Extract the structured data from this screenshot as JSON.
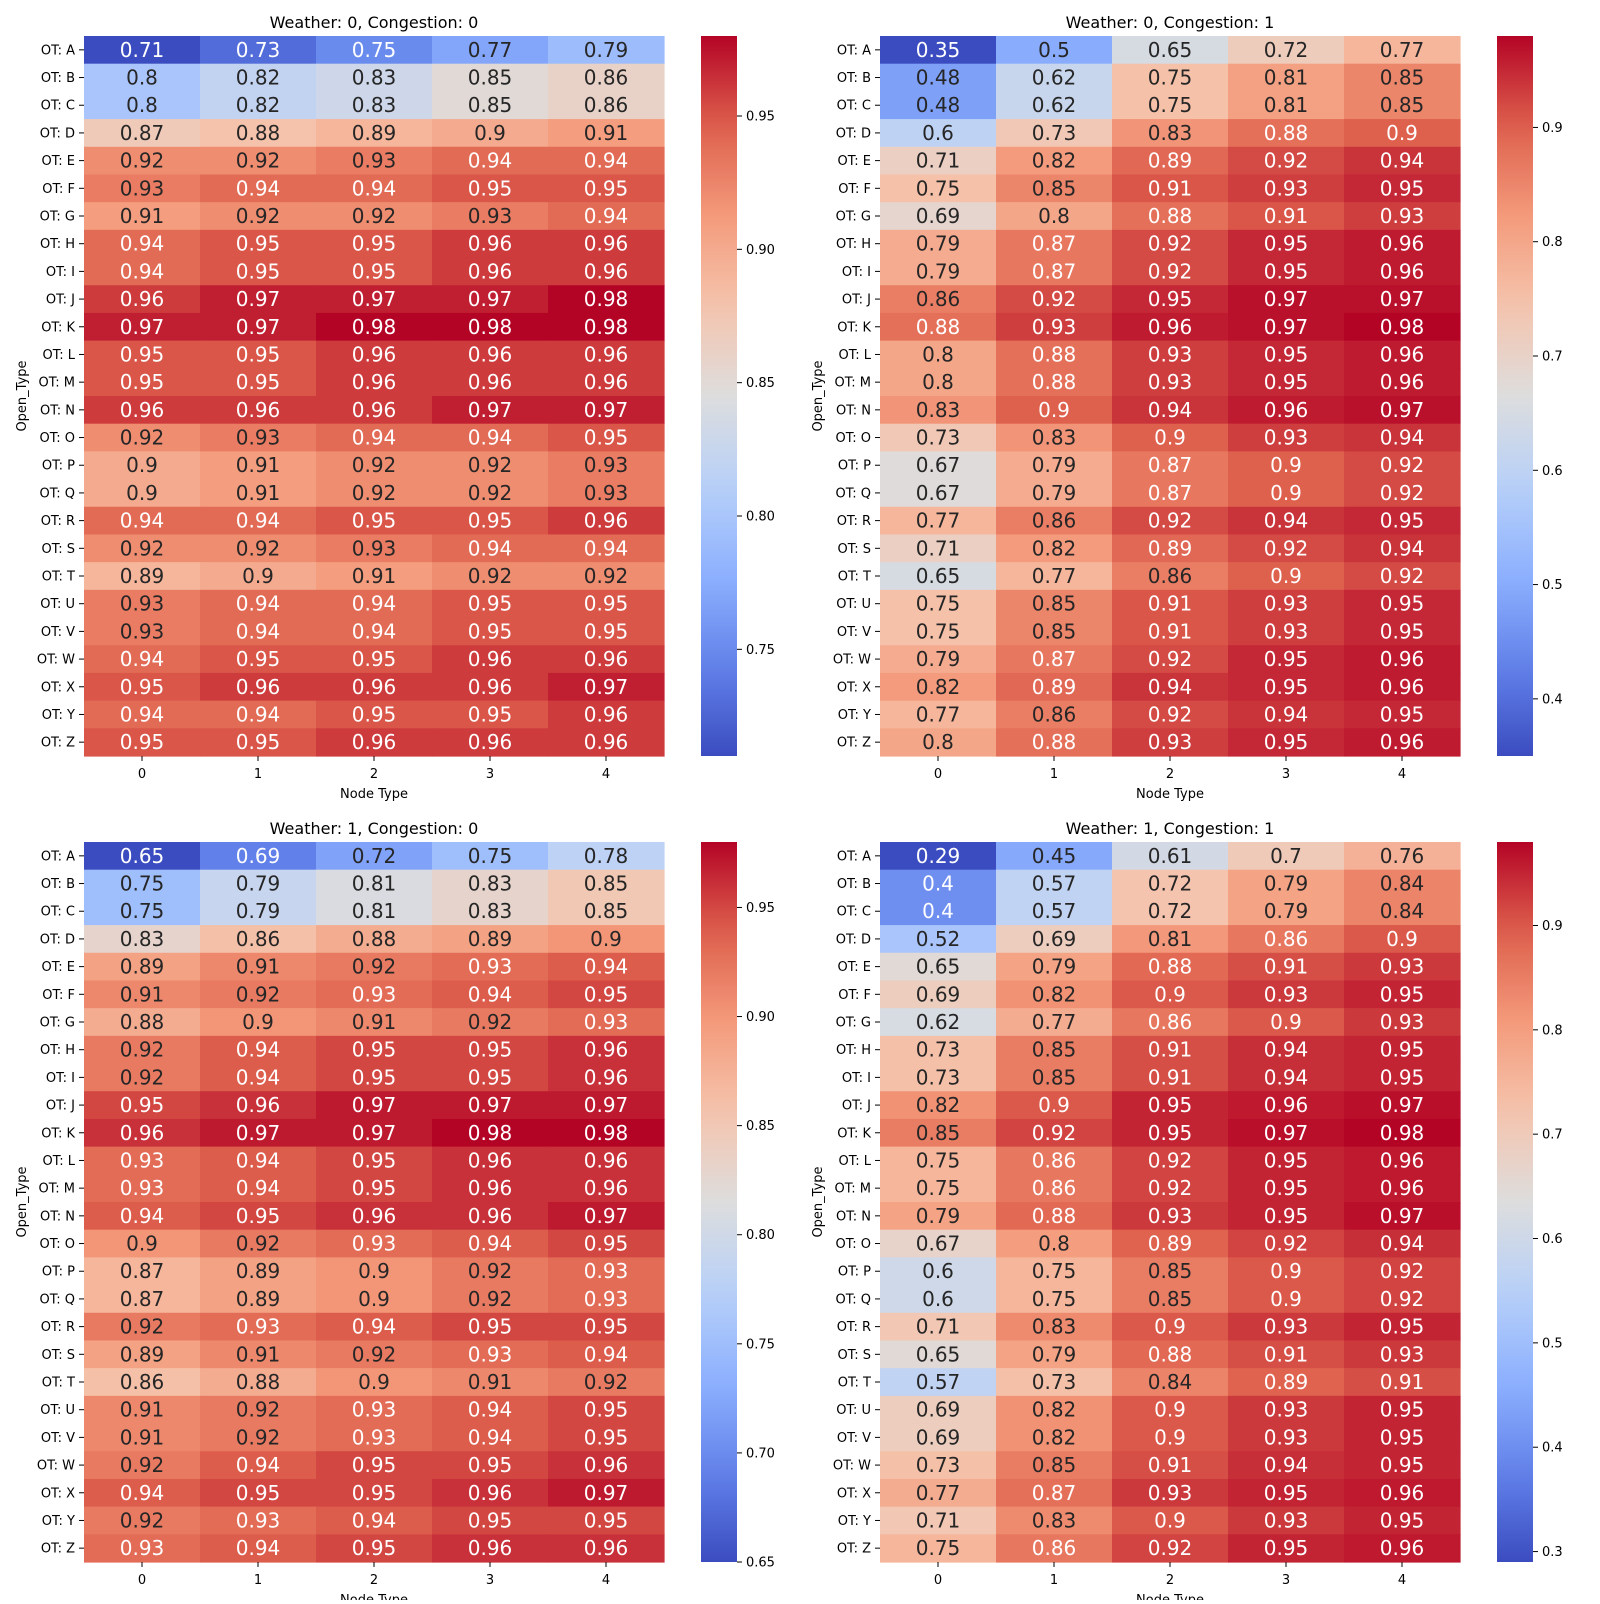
{
  "chart_data": [
    {
      "type": "heatmap",
      "title": "Weather: 0, Congestion: 0",
      "xlabel": "Node Type",
      "ylabel": "Open_Type",
      "x_categories": [
        "0",
        "1",
        "2",
        "3",
        "4"
      ],
      "y_categories": [
        "OT: A",
        "OT: B",
        "OT: C",
        "OT: D",
        "OT: E",
        "OT: F",
        "OT: G",
        "OT: H",
        "OT: I",
        "OT: J",
        "OT: K",
        "OT: L",
        "OT: M",
        "OT: N",
        "OT: O",
        "OT: P",
        "OT: Q",
        "OT: R",
        "OT: S",
        "OT: T",
        "OT: U",
        "OT: V",
        "OT: W",
        "OT: X",
        "OT: Y",
        "OT: Z"
      ],
      "values": [
        [
          0.71,
          0.73,
          0.75,
          0.77,
          0.79
        ],
        [
          0.8,
          0.82,
          0.83,
          0.85,
          0.86
        ],
        [
          0.8,
          0.82,
          0.83,
          0.85,
          0.86
        ],
        [
          0.87,
          0.88,
          0.89,
          0.9,
          0.91
        ],
        [
          0.92,
          0.92,
          0.93,
          0.94,
          0.94
        ],
        [
          0.93,
          0.94,
          0.94,
          0.95,
          0.95
        ],
        [
          0.91,
          0.92,
          0.92,
          0.93,
          0.94
        ],
        [
          0.94,
          0.95,
          0.95,
          0.96,
          0.96
        ],
        [
          0.94,
          0.95,
          0.95,
          0.96,
          0.96
        ],
        [
          0.96,
          0.97,
          0.97,
          0.97,
          0.98
        ],
        [
          0.97,
          0.97,
          0.98,
          0.98,
          0.98
        ],
        [
          0.95,
          0.95,
          0.96,
          0.96,
          0.96
        ],
        [
          0.95,
          0.95,
          0.96,
          0.96,
          0.96
        ],
        [
          0.96,
          0.96,
          0.96,
          0.97,
          0.97
        ],
        [
          0.92,
          0.93,
          0.94,
          0.94,
          0.95
        ],
        [
          0.9,
          0.91,
          0.92,
          0.92,
          0.93
        ],
        [
          0.9,
          0.91,
          0.92,
          0.92,
          0.93
        ],
        [
          0.94,
          0.94,
          0.95,
          0.95,
          0.96
        ],
        [
          0.92,
          0.92,
          0.93,
          0.94,
          0.94
        ],
        [
          0.89,
          0.9,
          0.91,
          0.92,
          0.92
        ],
        [
          0.93,
          0.94,
          0.94,
          0.95,
          0.95
        ],
        [
          0.93,
          0.94,
          0.94,
          0.95,
          0.95
        ],
        [
          0.94,
          0.95,
          0.95,
          0.96,
          0.96
        ],
        [
          0.95,
          0.96,
          0.96,
          0.96,
          0.97
        ],
        [
          0.94,
          0.94,
          0.95,
          0.95,
          0.96
        ],
        [
          0.95,
          0.95,
          0.96,
          0.96,
          0.96
        ]
      ],
      "colorbar": {
        "range": [
          0.71,
          0.98
        ],
        "ticks": [
          "0.75",
          "0.80",
          "0.85",
          "0.90",
          "0.95"
        ],
        "colormap": "coolwarm"
      }
    },
    {
      "type": "heatmap",
      "title": "Weather: 0, Congestion: 1",
      "xlabel": "Node Type",
      "ylabel": "Open_Type",
      "x_categories": [
        "0",
        "1",
        "2",
        "3",
        "4"
      ],
      "y_categories": [
        "OT: A",
        "OT: B",
        "OT: C",
        "OT: D",
        "OT: E",
        "OT: F",
        "OT: G",
        "OT: H",
        "OT: I",
        "OT: J",
        "OT: K",
        "OT: L",
        "OT: M",
        "OT: N",
        "OT: O",
        "OT: P",
        "OT: Q",
        "OT: R",
        "OT: S",
        "OT: T",
        "OT: U",
        "OT: V",
        "OT: W",
        "OT: X",
        "OT: Y",
        "OT: Z"
      ],
      "values": [
        [
          0.35,
          0.5,
          0.65,
          0.72,
          0.77
        ],
        [
          0.48,
          0.62,
          0.75,
          0.81,
          0.85
        ],
        [
          0.48,
          0.62,
          0.75,
          0.81,
          0.85
        ],
        [
          0.6,
          0.73,
          0.83,
          0.88,
          0.9
        ],
        [
          0.71,
          0.82,
          0.89,
          0.92,
          0.94
        ],
        [
          0.75,
          0.85,
          0.91,
          0.93,
          0.95
        ],
        [
          0.69,
          0.8,
          0.88,
          0.91,
          0.93
        ],
        [
          0.79,
          0.87,
          0.92,
          0.95,
          0.96
        ],
        [
          0.79,
          0.87,
          0.92,
          0.95,
          0.96
        ],
        [
          0.86,
          0.92,
          0.95,
          0.97,
          0.97
        ],
        [
          0.88,
          0.93,
          0.96,
          0.97,
          0.98
        ],
        [
          0.8,
          0.88,
          0.93,
          0.95,
          0.96
        ],
        [
          0.8,
          0.88,
          0.93,
          0.95,
          0.96
        ],
        [
          0.83,
          0.9,
          0.94,
          0.96,
          0.97
        ],
        [
          0.73,
          0.83,
          0.9,
          0.93,
          0.94
        ],
        [
          0.67,
          0.79,
          0.87,
          0.9,
          0.92
        ],
        [
          0.67,
          0.79,
          0.87,
          0.9,
          0.92
        ],
        [
          0.77,
          0.86,
          0.92,
          0.94,
          0.95
        ],
        [
          0.71,
          0.82,
          0.89,
          0.92,
          0.94
        ],
        [
          0.65,
          0.77,
          0.86,
          0.9,
          0.92
        ],
        [
          0.75,
          0.85,
          0.91,
          0.93,
          0.95
        ],
        [
          0.75,
          0.85,
          0.91,
          0.93,
          0.95
        ],
        [
          0.79,
          0.87,
          0.92,
          0.95,
          0.96
        ],
        [
          0.82,
          0.89,
          0.94,
          0.95,
          0.96
        ],
        [
          0.77,
          0.86,
          0.92,
          0.94,
          0.95
        ],
        [
          0.8,
          0.88,
          0.93,
          0.95,
          0.96
        ]
      ],
      "colorbar": {
        "range": [
          0.35,
          0.98
        ],
        "ticks": [
          "0.4",
          "0.5",
          "0.6",
          "0.7",
          "0.8",
          "0.9"
        ],
        "colormap": "coolwarm"
      }
    },
    {
      "type": "heatmap",
      "title": "Weather: 1, Congestion: 0",
      "xlabel": "Node Type",
      "ylabel": "Open_Type",
      "x_categories": [
        "0",
        "1",
        "2",
        "3",
        "4"
      ],
      "y_categories": [
        "OT: A",
        "OT: B",
        "OT: C",
        "OT: D",
        "OT: E",
        "OT: F",
        "OT: G",
        "OT: H",
        "OT: I",
        "OT: J",
        "OT: K",
        "OT: L",
        "OT: M",
        "OT: N",
        "OT: O",
        "OT: P",
        "OT: Q",
        "OT: R",
        "OT: S",
        "OT: T",
        "OT: U",
        "OT: V",
        "OT: W",
        "OT: X",
        "OT: Y",
        "OT: Z"
      ],
      "values": [
        [
          0.65,
          0.69,
          0.72,
          0.75,
          0.78
        ],
        [
          0.75,
          0.79,
          0.81,
          0.83,
          0.85
        ],
        [
          0.75,
          0.79,
          0.81,
          0.83,
          0.85
        ],
        [
          0.83,
          0.86,
          0.88,
          0.89,
          0.9
        ],
        [
          0.89,
          0.91,
          0.92,
          0.93,
          0.94
        ],
        [
          0.91,
          0.92,
          0.93,
          0.94,
          0.95
        ],
        [
          0.88,
          0.9,
          0.91,
          0.92,
          0.93
        ],
        [
          0.92,
          0.94,
          0.95,
          0.95,
          0.96
        ],
        [
          0.92,
          0.94,
          0.95,
          0.95,
          0.96
        ],
        [
          0.95,
          0.96,
          0.97,
          0.97,
          0.97
        ],
        [
          0.96,
          0.97,
          0.97,
          0.98,
          0.98
        ],
        [
          0.93,
          0.94,
          0.95,
          0.96,
          0.96
        ],
        [
          0.93,
          0.94,
          0.95,
          0.96,
          0.96
        ],
        [
          0.94,
          0.95,
          0.96,
          0.96,
          0.97
        ],
        [
          0.9,
          0.92,
          0.93,
          0.94,
          0.95
        ],
        [
          0.87,
          0.89,
          0.9,
          0.92,
          0.93
        ],
        [
          0.87,
          0.89,
          0.9,
          0.92,
          0.93
        ],
        [
          0.92,
          0.93,
          0.94,
          0.95,
          0.95
        ],
        [
          0.89,
          0.91,
          0.92,
          0.93,
          0.94
        ],
        [
          0.86,
          0.88,
          0.9,
          0.91,
          0.92
        ],
        [
          0.91,
          0.92,
          0.93,
          0.94,
          0.95
        ],
        [
          0.91,
          0.92,
          0.93,
          0.94,
          0.95
        ],
        [
          0.92,
          0.94,
          0.95,
          0.95,
          0.96
        ],
        [
          0.94,
          0.95,
          0.95,
          0.96,
          0.97
        ],
        [
          0.92,
          0.93,
          0.94,
          0.95,
          0.95
        ],
        [
          0.93,
          0.94,
          0.95,
          0.96,
          0.96
        ]
      ],
      "colorbar": {
        "range": [
          0.65,
          0.98
        ],
        "ticks": [
          "0.65",
          "0.70",
          "0.75",
          "0.80",
          "0.85",
          "0.90",
          "0.95"
        ],
        "colormap": "coolwarm"
      }
    },
    {
      "type": "heatmap",
      "title": "Weather: 1, Congestion: 1",
      "xlabel": "Node Type",
      "ylabel": "Open_Type",
      "x_categories": [
        "0",
        "1",
        "2",
        "3",
        "4"
      ],
      "y_categories": [
        "OT: A",
        "OT: B",
        "OT: C",
        "OT: D",
        "OT: E",
        "OT: F",
        "OT: G",
        "OT: H",
        "OT: I",
        "OT: J",
        "OT: K",
        "OT: L",
        "OT: M",
        "OT: N",
        "OT: O",
        "OT: P",
        "OT: Q",
        "OT: R",
        "OT: S",
        "OT: T",
        "OT: U",
        "OT: V",
        "OT: W",
        "OT: X",
        "OT: Y",
        "OT: Z"
      ],
      "values": [
        [
          0.29,
          0.45,
          0.61,
          0.7,
          0.76
        ],
        [
          0.4,
          0.57,
          0.72,
          0.79,
          0.84
        ],
        [
          0.4,
          0.57,
          0.72,
          0.79,
          0.84
        ],
        [
          0.52,
          0.69,
          0.81,
          0.86,
          0.9
        ],
        [
          0.65,
          0.79,
          0.88,
          0.91,
          0.93
        ],
        [
          0.69,
          0.82,
          0.9,
          0.93,
          0.95
        ],
        [
          0.62,
          0.77,
          0.86,
          0.9,
          0.93
        ],
        [
          0.73,
          0.85,
          0.91,
          0.94,
          0.95
        ],
        [
          0.73,
          0.85,
          0.91,
          0.94,
          0.95
        ],
        [
          0.82,
          0.9,
          0.95,
          0.96,
          0.97
        ],
        [
          0.85,
          0.92,
          0.95,
          0.97,
          0.98
        ],
        [
          0.75,
          0.86,
          0.92,
          0.95,
          0.96
        ],
        [
          0.75,
          0.86,
          0.92,
          0.95,
          0.96
        ],
        [
          0.79,
          0.88,
          0.93,
          0.95,
          0.97
        ],
        [
          0.67,
          0.8,
          0.89,
          0.92,
          0.94
        ],
        [
          0.6,
          0.75,
          0.85,
          0.9,
          0.92
        ],
        [
          0.6,
          0.75,
          0.85,
          0.9,
          0.92
        ],
        [
          0.71,
          0.83,
          0.9,
          0.93,
          0.95
        ],
        [
          0.65,
          0.79,
          0.88,
          0.91,
          0.93
        ],
        [
          0.57,
          0.73,
          0.84,
          0.89,
          0.91
        ],
        [
          0.69,
          0.82,
          0.9,
          0.93,
          0.95
        ],
        [
          0.69,
          0.82,
          0.9,
          0.93,
          0.95
        ],
        [
          0.73,
          0.85,
          0.91,
          0.94,
          0.95
        ],
        [
          0.77,
          0.87,
          0.93,
          0.95,
          0.96
        ],
        [
          0.71,
          0.83,
          0.9,
          0.93,
          0.95
        ],
        [
          0.75,
          0.86,
          0.92,
          0.95,
          0.96
        ]
      ],
      "colorbar": {
        "range": [
          0.29,
          0.98
        ],
        "ticks": [
          "0.3",
          "0.4",
          "0.5",
          "0.6",
          "0.7",
          "0.8",
          "0.9"
        ],
        "colormap": "coolwarm"
      }
    }
  ]
}
